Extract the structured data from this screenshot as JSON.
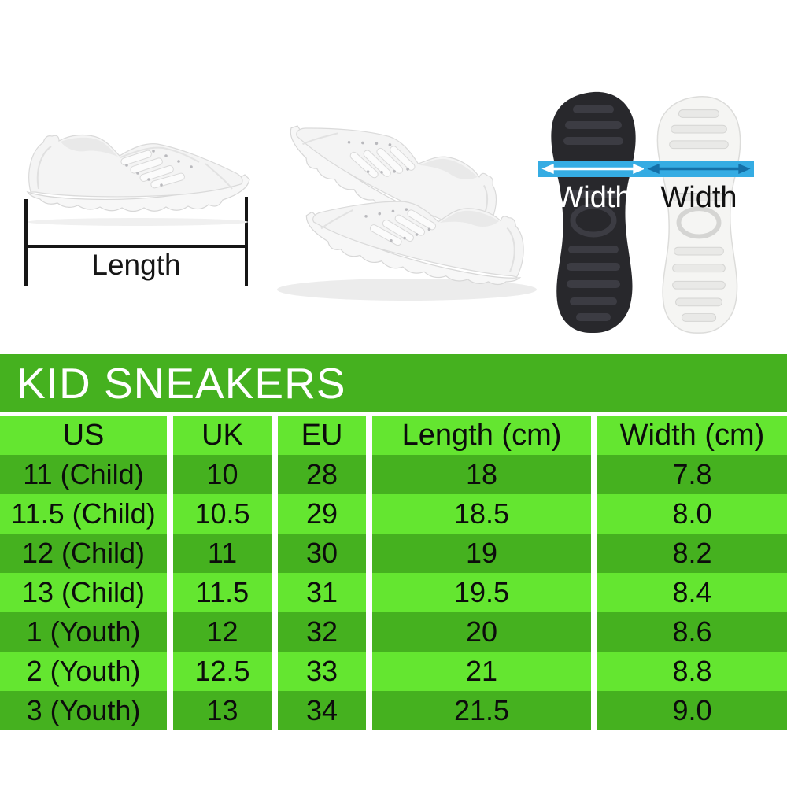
{
  "title": "KID SNEAKERS",
  "photo": {
    "length_label": "Length",
    "width_label_black_sole": "Width",
    "width_label_white_sole": "Width"
  },
  "table": {
    "headers": [
      "US",
      "UK",
      "EU",
      "Length (cm)",
      "Width (cm)"
    ],
    "rows": [
      [
        "11 (Child)",
        "10",
        "28",
        "18",
        "7.8"
      ],
      [
        "11.5 (Child)",
        "10.5",
        "29",
        "18.5",
        "8.0"
      ],
      [
        "12 (Child)",
        "11",
        "30",
        "19",
        "8.2"
      ],
      [
        "13 (Child)",
        "11.5",
        "31",
        "19.5",
        "8.4"
      ],
      [
        "1 (Youth)",
        "12",
        "32",
        "20",
        "8.6"
      ],
      [
        "2 (Youth)",
        "12.5",
        "33",
        "21",
        "8.8"
      ],
      [
        "3 (Youth)",
        "13",
        "34",
        "21.5",
        "9.0"
      ]
    ]
  },
  "colors": {
    "title_band_green": "#45B11F",
    "row_dark_green": "#45B11F",
    "row_light_green": "#64E630",
    "measure_band_blue": "#35ACE3",
    "arrow_dark_blue": "#1470A8",
    "title_text": "#FFFFFF",
    "table_text": "#0C0C0C"
  },
  "chart_data": {
    "type": "table",
    "title": "KID SNEAKERS",
    "columns": [
      "US",
      "UK",
      "EU",
      "Length (cm)",
      "Width (cm)"
    ],
    "rows": [
      [
        "11 (Child)",
        "10",
        "28",
        "18",
        "7.8"
      ],
      [
        "11.5 (Child)",
        "10.5",
        "29",
        "18.5",
        "8.0"
      ],
      [
        "12 (Child)",
        "11",
        "30",
        "19",
        "8.2"
      ],
      [
        "13 (Child)",
        "11.5",
        "31",
        "19.5",
        "8.4"
      ],
      [
        "1 (Youth)",
        "12",
        "32",
        "20",
        "8.6"
      ],
      [
        "2 (Youth)",
        "12.5",
        "33",
        "21",
        "8.8"
      ],
      [
        "3 (Youth)",
        "13",
        "34",
        "21.5",
        "9.0"
      ]
    ],
    "annotations": [
      "Length",
      "Width",
      "Width"
    ]
  }
}
